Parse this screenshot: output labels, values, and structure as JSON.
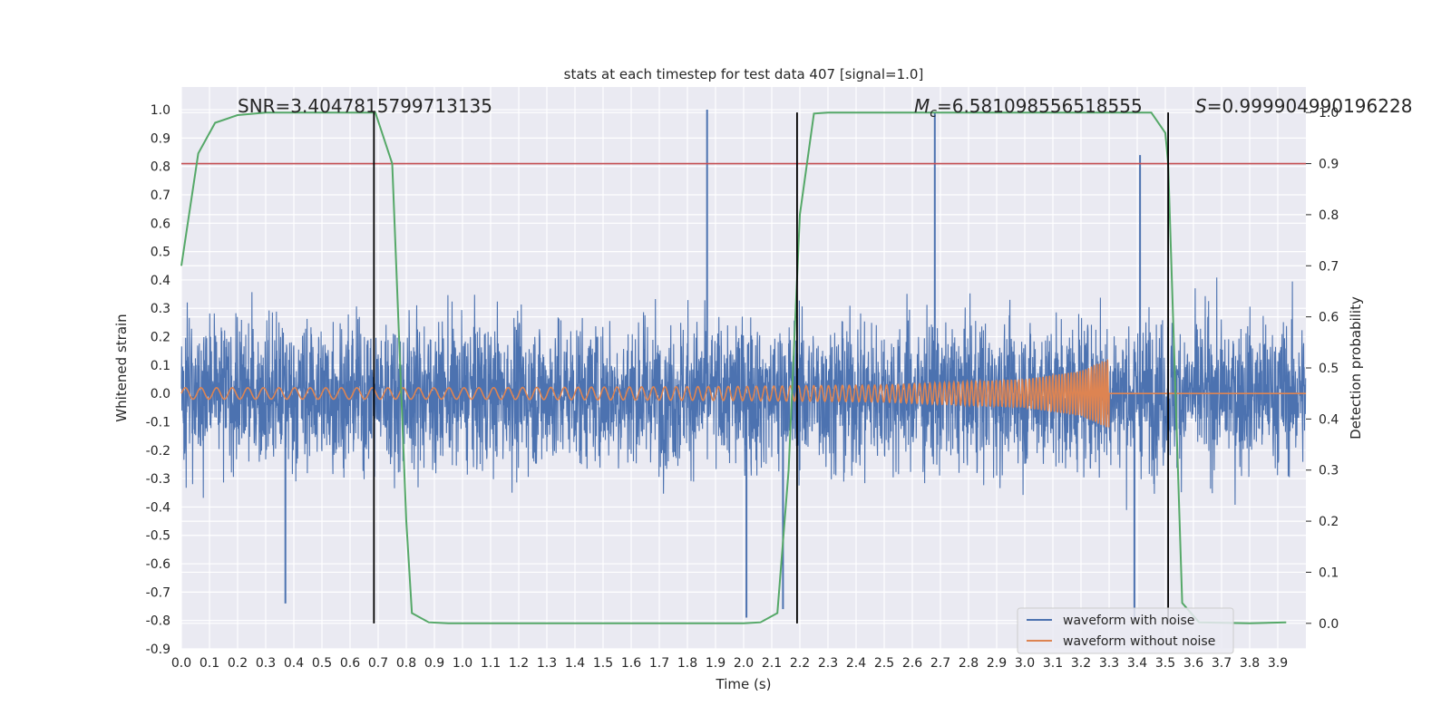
{
  "chart_data": {
    "type": "line",
    "title": "stats at each timestep for test data 407 [signal=1.0]",
    "xlabel": "Time (s)",
    "ylabel": "Whitened strain",
    "y2label": "Detection probability",
    "xlim": [
      0.0,
      4.0
    ],
    "ylim": [
      -0.9,
      1.08
    ],
    "y2lim": [
      -0.05,
      1.05
    ],
    "xticks": [
      "0.0",
      "0.1",
      "0.2",
      "0.3",
      "0.4",
      "0.5",
      "0.6",
      "0.7",
      "0.8",
      "0.9",
      "1.0",
      "1.1",
      "1.2",
      "1.3",
      "1.4",
      "1.5",
      "1.6",
      "1.7",
      "1.8",
      "1.9",
      "2.0",
      "2.1",
      "2.2",
      "2.3",
      "2.4",
      "2.5",
      "2.6",
      "2.7",
      "2.8",
      "2.9",
      "3.0",
      "3.1",
      "3.2",
      "3.3",
      "3.4",
      "3.5",
      "3.6",
      "3.7",
      "3.8",
      "3.9"
    ],
    "yticks": [
      "-0.9",
      "-0.8",
      "-0.7",
      "-0.6",
      "-0.5",
      "-0.4",
      "-0.3",
      "-0.2",
      "-0.1",
      "0.0",
      "0.1",
      "0.2",
      "0.3",
      "0.4",
      "0.5",
      "0.6",
      "0.7",
      "0.8",
      "0.9",
      "1.0"
    ],
    "y2ticks": [
      "0.0",
      "0.1",
      "0.2",
      "0.3",
      "0.4",
      "0.5",
      "0.6",
      "0.7",
      "0.8",
      "0.9",
      "1.0"
    ],
    "grid": true,
    "legend_position": "lower right",
    "annotations": {
      "snr": "SNR=3.4047815799713135",
      "mc_symbol": "M",
      "mc_sub": "c",
      "mc_value": "=6.581098556518555",
      "s_symbol": "S",
      "s_value": "=0.999904990196228"
    },
    "threshold": {
      "axis": "y2",
      "value": 0.9,
      "color": "#c44e52"
    },
    "vertical_lines": [
      0.685,
      2.19,
      3.51
    ],
    "series": [
      {
        "name": "waveform with noise",
        "axis": "y",
        "color": "#4c72b0",
        "description_range": [
          -0.8,
          1.0
        ],
        "peaks": [
          [
            1.87,
            1.0
          ],
          [
            2.68,
            0.99
          ],
          [
            3.41,
            0.84
          ],
          [
            2.01,
            -0.79
          ],
          [
            0.37,
            -0.74
          ],
          [
            3.39,
            -0.79
          ],
          [
            2.14,
            -0.76
          ]
        ]
      },
      {
        "name": "waveform without noise",
        "axis": "y",
        "color": "#dd8452",
        "envelope": [
          [
            0.0,
            0.02
          ],
          [
            1.0,
            0.02
          ],
          [
            2.0,
            0.025
          ],
          [
            2.5,
            0.03
          ],
          [
            3.0,
            0.05
          ],
          [
            3.2,
            0.08
          ],
          [
            3.29,
            0.12
          ]
        ],
        "merger_time": 3.3
      },
      {
        "name": "detection probability",
        "axis": "y2",
        "color": "#55a868",
        "x": [
          0.0,
          0.06,
          0.12,
          0.2,
          0.3,
          0.5,
          0.69,
          0.75,
          0.8,
          0.82,
          0.88,
          0.95,
          1.5,
          2.0,
          2.06,
          2.12,
          2.16,
          2.2,
          2.25,
          2.3,
          3.0,
          3.45,
          3.5,
          3.51,
          3.56,
          3.62,
          3.8,
          3.93
        ],
        "y": [
          0.7,
          0.92,
          0.98,
          0.995,
          1.0,
          1.0,
          1.0,
          0.9,
          0.2,
          0.02,
          0.002,
          0.0,
          0.0,
          0.0,
          0.002,
          0.02,
          0.3,
          0.8,
          0.998,
          1.0,
          1.0,
          1.0,
          0.96,
          0.9,
          0.04,
          0.002,
          0.0,
          0.002
        ]
      }
    ]
  }
}
